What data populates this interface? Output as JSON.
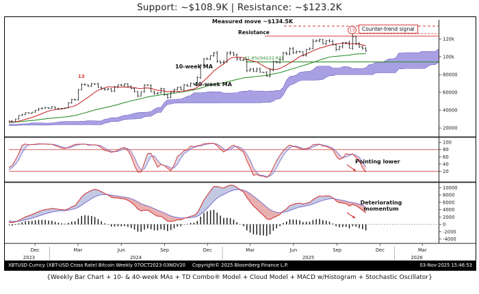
{
  "header": {
    "title": "Support: ~$108.9K | Resistance: ~$123.2K"
  },
  "caption": "{Weekly Bar Chart + 10- & 40-week MAs + TD Combo® Model + Cloud Model + MACD w/Histogram + Stochastic Oscillator}",
  "statusbar": {
    "left": "XBTUSD Curncy (XBT-USD Cross Rate) Bitcoin Weekly 07OCT2023-03NOV2025",
    "center": "Copyright© 2025 Bloomberg Finance L.P.",
    "right": "03-Nov-2025 15:46:53"
  },
  "annotations": {
    "measured_move": "Measured move ~$134.5K",
    "counter_trend": "Counter-trend signal",
    "resistance": "Resistance",
    "ma_fast": "10-week MA",
    "ma_slow": "40-week MA",
    "fib_level": "61.8%(94222.62)",
    "td_count_2024": "13",
    "td_count_2025": "13",
    "stoch_note": "Pointing lower",
    "macd_note": "Deteriorating momentum"
  },
  "colors": {
    "bar": "#262626",
    "ma10": "#cc2b2b",
    "ma40": "#2f8f2f",
    "cloud": "#8b80d8",
    "cloud_edge": "#6f63c8",
    "resistance": "#d43a3a",
    "fib": "#2f8f2f",
    "stoch_k": "#cc2b2b",
    "stoch_d": "#7b6fd0",
    "macd": "#cc2b2b",
    "macd_signal": "#7b6fd0",
    "fill_up": "#a9b2d6",
    "fill_down": "#e08f8f",
    "histogram": "#1a1a1a",
    "band": "#cc4444"
  },
  "xaxis": {
    "months": [
      {
        "label": "Dec",
        "week": 7.9
      },
      {
        "label": "Mar",
        "week": 20.9
      },
      {
        "label": "Jun",
        "week": 34.0
      },
      {
        "label": "Sep",
        "week": 47.1
      },
      {
        "label": "Dec",
        "week": 60.1
      },
      {
        "label": "Mar",
        "week": 73.0
      },
      {
        "label": "Jun",
        "week": 86.1
      },
      {
        "label": "Sep",
        "week": 99.3
      },
      {
        "label": "Dec",
        "week": 112.3
      },
      {
        "label": "Mar",
        "week": 125.1
      }
    ],
    "years": [
      {
        "label": "2023",
        "week": 6.1
      },
      {
        "label": "2024",
        "week": 38.4
      },
      {
        "label": "2025",
        "week": 90.6
      },
      {
        "label": "2026",
        "week": 123.4
      }
    ],
    "year_boundaries_weeks": [
      12.3,
      64.6,
      116.7
    ]
  },
  "chart_data": [
    {
      "type": "bar",
      "name": "price-weekly-ohlc",
      "title": "XBTUSD weekly bars with 10/40-week MAs, TD Combo counts and cloud model",
      "x_start": "2023-10-07",
      "x_frequency": "weekly",
      "ylim": [
        14000,
        140000
      ],
      "yticks": [
        20000,
        40000,
        60000,
        80000,
        100000,
        120000
      ],
      "ytick_labels": [
        "20000",
        "40000",
        "60000",
        "80000",
        "100k",
        "120k"
      ],
      "closes": [
        27950,
        26850,
        29990,
        34100,
        35050,
        37150,
        36600,
        37750,
        39970,
        41600,
        42250,
        43000,
        42100,
        43950,
        41700,
        41600,
        42100,
        42600,
        48300,
        52100,
        51700,
        63100,
        68900,
        68400,
        67200,
        69600,
        69400,
        65700,
        64000,
        63100,
        64000,
        61500,
        66300,
        68500,
        67800,
        69600,
        66700,
        64300,
        60900,
        55900,
        60800,
        68200,
        67900,
        60700,
        58700,
        59500,
        64300,
        57300,
        54200,
        60100,
        63400,
        65600,
        62800,
        68400,
        67000,
        69900,
        68700,
        76700,
        90600,
        97700,
        97200,
        101200,
        104400,
        95100,
        93500,
        94500,
        104100,
        104800,
        102100,
        97700,
        96100,
        96600,
        84400,
        86100,
        83800,
        86100,
        82600,
        82400,
        78400,
        85200,
        94700,
        93800,
        96900,
        104100,
        103200,
        109000,
        104600,
        105700,
        105500,
        101500,
        108200,
        109200,
        117500,
        118000,
        119400,
        114800,
        118200,
        117400,
        113500,
        108200,
        111200,
        115900,
        115700,
        109700,
        122500,
        115000,
        111000,
        109600,
        107200
      ],
      "warmup_closes": [
        16700,
        16800,
        17100,
        20900,
        21650,
        23250,
        23100,
        23500,
        22350,
        22400,
        23200,
        23900,
        27450,
        28000,
        28450,
        27600,
        28050,
        29250,
        29350,
        28900,
        27150,
        26900,
        27100,
        27000,
        26350,
        25750,
        26300,
        30150,
        30250,
        30600,
        30300,
        29900,
        29200,
        26100,
        26050,
        26550,
        25900,
        26550,
        26050,
        27200
      ],
      "overlays": {
        "ma_fast_weeks": 10,
        "ma_slow_weeks": 40,
        "cloud": {
          "tenkan": 9,
          "kijun": 26,
          "senkou_b": 52,
          "displacement": 26
        }
      },
      "levels": {
        "support": 108900,
        "resistance": 123200,
        "measured_move_target": 134500,
        "fib_618_retracement": 94222.62,
        "recent_high": 126000
      },
      "td_combo_counts": [
        {
          "label": "13",
          "week_index": 22
        },
        {
          "label": "13",
          "week_index": 104
        }
      ]
    },
    {
      "type": "line",
      "name": "stochastic-oscillator",
      "derived_from": "price-weekly-ohlc",
      "params": {
        "k_weeks": 14,
        "k_smooth": 3,
        "d_smooth": 3
      },
      "ylim": [
        0,
        110
      ],
      "yticks": [
        100,
        80,
        60,
        40,
        20
      ],
      "ytick_labels": [
        "100",
        "80",
        "60",
        "40",
        "20"
      ],
      "bands": [
        80,
        20
      ]
    },
    {
      "type": "bar+line",
      "name": "macd-with-histogram",
      "derived_from": "price-weekly-ohlc",
      "params": {
        "fast": 12,
        "slow": 26,
        "signal": 9
      },
      "ylim": [
        -5000,
        11000
      ],
      "yticks": [
        10000,
        8000,
        6000,
        4000,
        2000,
        0,
        -2000,
        -4000
      ],
      "ytick_labels": [
        "10000",
        "8000",
        "6000",
        "4000",
        "2000",
        "0",
        "-2000",
        "-4000"
      ]
    }
  ]
}
